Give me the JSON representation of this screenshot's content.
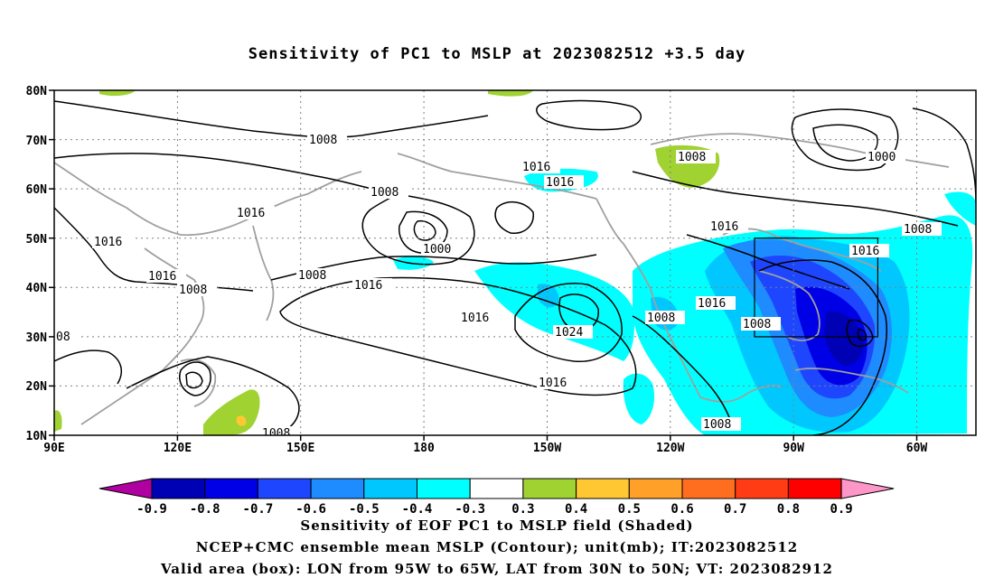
{
  "title": "Sensitivity of PC1 to MSLP at 2023082512 +3.5 day",
  "map": {
    "lat_labels": [
      "80N",
      "70N",
      "60N",
      "50N",
      "40N",
      "30N",
      "20N",
      "10N"
    ],
    "lon_labels": [
      "90E",
      "120E",
      "150E",
      "180",
      "150W",
      "120W",
      "90W",
      "60W"
    ],
    "contour_labels": [
      "1008",
      "1016",
      "1016",
      "1008",
      "1000",
      "1008",
      "1016",
      "1016",
      "1016",
      "1008",
      "1016",
      "1016",
      "1024",
      "1016",
      "1008",
      "1016",
      "1008",
      "1008",
      "1016",
      "1008",
      "1000",
      "1008",
      "1008",
      "08"
    ],
    "valid_box": {
      "lon": [
        -95,
        -65
      ],
      "lat": [
        30,
        50
      ]
    }
  },
  "colorbar": {
    "labels": [
      "-0.9",
      "-0.8",
      "-0.7",
      "-0.6",
      "-0.5",
      "-0.4",
      "-0.3",
      "0.3",
      "0.4",
      "0.5",
      "0.6",
      "0.7",
      "0.8",
      "0.9"
    ],
    "colors": [
      "#b000a0",
      "#0000b4",
      "#0000e6",
      "#1e46ff",
      "#1e8cff",
      "#00c8ff",
      "#00ffff",
      "#ffffff",
      "#a0d232",
      "#ffc832",
      "#ffa028",
      "#ff6e1e",
      "#ff3c14",
      "#ff0000",
      "#ff96c8"
    ]
  },
  "captions": {
    "line1": "Sensitivity of EOF PC1 to MSLP field (Shaded)",
    "line2": "NCEP+CMC ensemble mean MSLP (Contour); unit(mb); IT:2023082512",
    "line3": "Valid area (box): LON from 95W to 65W, LAT from 30N to 50N; VT: 2023082912"
  }
}
